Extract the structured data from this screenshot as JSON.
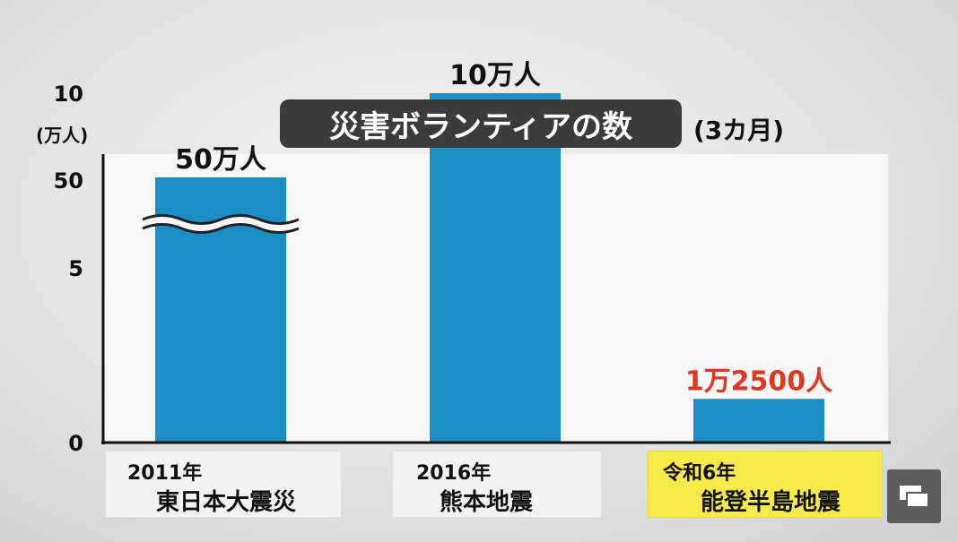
{
  "title": "災害ボランティアの数",
  "subtitle": "(3カ月)",
  "chart_data": {
    "type": "bar",
    "title": "災害ボランティアの数",
    "subtitle": "(3カ月)",
    "ylabel": "(万人)",
    "yticks": [
      "50",
      "10",
      "5",
      "0"
    ],
    "axis_break": true,
    "categories": [
      {
        "year": "2011年",
        "name": "東日本大震災"
      },
      {
        "year": "2016年",
        "name": "熊本地震"
      },
      {
        "year": "令和6年",
        "name": "能登半島地震"
      }
    ],
    "values": [
      50,
      10,
      1.25
    ],
    "value_labels": [
      "50万人",
      "10万人",
      "1万2500人"
    ],
    "colors": {
      "bar": "#1b8ec6",
      "highlight_text": "#e0371f",
      "highlight_bg": "#f6ea4a"
    }
  }
}
